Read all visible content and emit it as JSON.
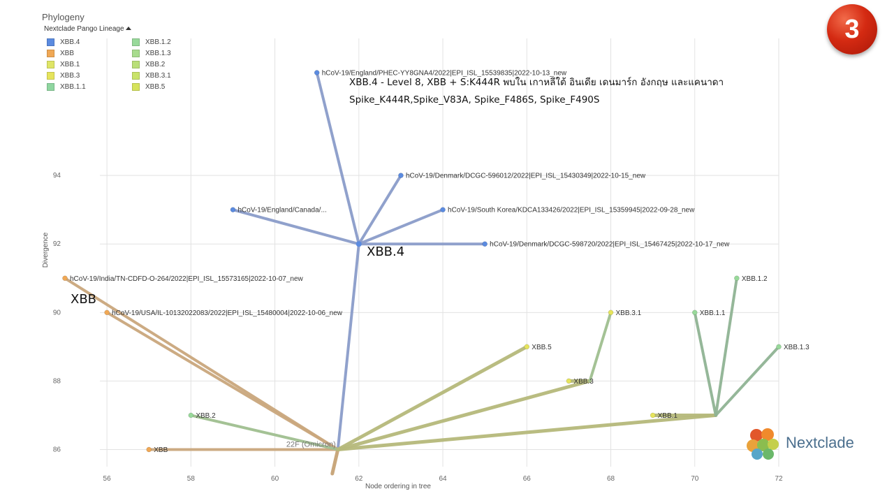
{
  "panel": {
    "title": "Phylogeny",
    "legend_title": "Nextclade Pango Lineage"
  },
  "legend": [
    {
      "label": "XBB.4",
      "color": "#5b8be0"
    },
    {
      "label": "XBB.1.2",
      "color": "#98d99a"
    },
    {
      "label": "XBB",
      "color": "#f0a855"
    },
    {
      "label": "XBB.1.3",
      "color": "#a8dc8e"
    },
    {
      "label": "XBB.1",
      "color": "#dfe566"
    },
    {
      "label": "XBB.2",
      "color": "#b9df78"
    },
    {
      "label": "XBB.3",
      "color": "#e6e45c"
    },
    {
      "label": "XBB.3.1",
      "color": "#c9e36a"
    },
    {
      "label": "XBB.1.1",
      "color": "#8fd6a0"
    },
    {
      "label": "XBB.5",
      "color": "#d6e35c"
    }
  ],
  "annotations": {
    "line1": "XBB.4 - Level 8, XBB + S:K444R  พบใน  เกาหลีใต้ อินเดีย เดนมาร์ก อังกฤษ และแคนาดา",
    "line2": "Spike_K444R,Spike_V83A, Spike_F486S, Spike_F490S"
  },
  "clade_labels": {
    "xbb4": "XBB.4",
    "xbb": "XBB"
  },
  "badge": "3",
  "logo": {
    "text": "Nextclade"
  },
  "colors": {
    "xbb4_branch": "#8a9cc9",
    "xbb_branch": "#c9a77c",
    "xbb1_branch": "#b5b87a",
    "xbb1x_branch": "#8fb393",
    "xbb2_branch": "#9fbf8f",
    "grid": "#e2e2e2",
    "tip_xbb4": "#5b8be0",
    "tip_xbb": "#f0a855",
    "tip_yellow": "#e6e45c",
    "tip_green": "#98d99a"
  },
  "chart_data": {
    "type": "scatter",
    "xlabel": "Node ordering in tree",
    "ylabel": "Divergence",
    "xlim": [
      55,
      72
    ],
    "ylim": [
      85.5,
      98
    ],
    "x_ticks": [
      56,
      58,
      60,
      62,
      64,
      66,
      68,
      70,
      72
    ],
    "y_ticks": [
      86,
      88,
      90,
      92,
      94
    ],
    "grid": true,
    "internal_nodes": [
      {
        "id": "root",
        "x": 61.5,
        "y": 86,
        "label": "22F (Omicron)"
      },
      {
        "id": "xbb4",
        "x": 62,
        "y": 92
      },
      {
        "id": "xbb3",
        "x": 67.5,
        "y": 88
      },
      {
        "id": "xbb1",
        "x": 70.5,
        "y": 87
      }
    ],
    "edges": [
      {
        "from": "root",
        "to": "xbb4",
        "group": "xbb4"
      },
      {
        "from": "xbb4",
        "to": "t_eng",
        "group": "xbb4"
      },
      {
        "from": "xbb4",
        "to": "t_den1",
        "group": "xbb4"
      },
      {
        "from": "xbb4",
        "to": "t_can",
        "group": "xbb4"
      },
      {
        "from": "xbb4",
        "to": "t_kor",
        "group": "xbb4"
      },
      {
        "from": "xbb4",
        "to": "t_den2",
        "group": "xbb4"
      },
      {
        "from": "root",
        "to": "t_ind",
        "group": "xbb"
      },
      {
        "from": "root",
        "to": "t_usa",
        "group": "xbb"
      },
      {
        "from": "root",
        "to": "t_xbb",
        "group": "xbb"
      },
      {
        "from": "root",
        "to": "t_xbb2",
        "group": "xbb2"
      },
      {
        "from": "root",
        "to": "t_xbb5",
        "group": "xbb1"
      },
      {
        "from": "root",
        "to": "xbb3",
        "group": "xbb1"
      },
      {
        "from": "xbb3",
        "to": "t_xbb3",
        "group": "xbb1"
      },
      {
        "from": "xbb3",
        "to": "t_xbb31",
        "group": "xbb2"
      },
      {
        "from": "root",
        "to": "xbb1",
        "group": "xbb1"
      },
      {
        "from": "xbb1",
        "to": "t_xbb1",
        "group": "xbb1"
      },
      {
        "from": "xbb1",
        "to": "t_xbb11",
        "group": "xbb1x"
      },
      {
        "from": "xbb1",
        "to": "t_xbb12",
        "group": "xbb1x"
      },
      {
        "from": "xbb1",
        "to": "t_xbb13",
        "group": "xbb1x"
      }
    ],
    "tips": [
      {
        "id": "t_eng",
        "x": 61,
        "y": 97,
        "lineage": "XBB.4",
        "label": "hCoV-19/England/PHEC-YY8GNA4/2022|EPI_ISL_15539835|2022-10-13_new"
      },
      {
        "id": "t_den1",
        "x": 63,
        "y": 94,
        "lineage": "XBB.4",
        "label": "hCoV-19/Denmark/DCGC-596012/2022|EPI_ISL_15430349|2022-10-15_new"
      },
      {
        "id": "t_can",
        "x": 59,
        "y": 93,
        "lineage": "XBB.4",
        "label": "hCoV-19/England/Canada/..."
      },
      {
        "id": "t_kor",
        "x": 64,
        "y": 93,
        "lineage": "XBB.4",
        "label": "hCoV-19/South Korea/KDCA133426/2022|EPI_ISL_15359945|2022-09-28_new"
      },
      {
        "id": "t_den2",
        "x": 65,
        "y": 92,
        "lineage": "XBB.4",
        "label": "hCoV-19/Denmark/DCGC-598720/2022|EPI_ISL_15467425|2022-10-17_new"
      },
      {
        "id": "t_ind",
        "x": 55,
        "y": 91,
        "lineage": "XBB",
        "label": "hCoV-19/India/TN-CDFD-O-264/2022|EPI_ISL_15573165|2022-10-07_new"
      },
      {
        "id": "t_usa",
        "x": 56,
        "y": 90,
        "lineage": "XBB",
        "label": "hCoV-19/USA/IL-10132022083/2022|EPI_ISL_15480004|2022-10-06_new"
      },
      {
        "id": "t_xbb",
        "x": 57,
        "y": 86,
        "lineage": "XBB",
        "label": "XBB"
      },
      {
        "id": "t_xbb2",
        "x": 58,
        "y": 87,
        "lineage": "XBB.2",
        "label": "XBB.2"
      },
      {
        "id": "t_xbb5",
        "x": 66,
        "y": 89,
        "lineage": "XBB.5",
        "label": "XBB.5"
      },
      {
        "id": "t_xbb3",
        "x": 67,
        "y": 88,
        "lineage": "XBB.3",
        "label": "XBB.3"
      },
      {
        "id": "t_xbb31",
        "x": 68,
        "y": 90,
        "lineage": "XBB.3.1",
        "label": "XBB.3.1"
      },
      {
        "id": "t_xbb1",
        "x": 69,
        "y": 87,
        "lineage": "XBB.1",
        "label": "XBB.1"
      },
      {
        "id": "t_xbb11",
        "x": 70,
        "y": 90,
        "lineage": "XBB.1.1",
        "label": "XBB.1.1"
      },
      {
        "id": "t_xbb12",
        "x": 71,
        "y": 91,
        "lineage": "XBB.1.2",
        "label": "XBB.1.2"
      },
      {
        "id": "t_xbb13",
        "x": 72,
        "y": 89,
        "lineage": "XBB.1.3",
        "label": "XBB.1.3"
      }
    ]
  }
}
